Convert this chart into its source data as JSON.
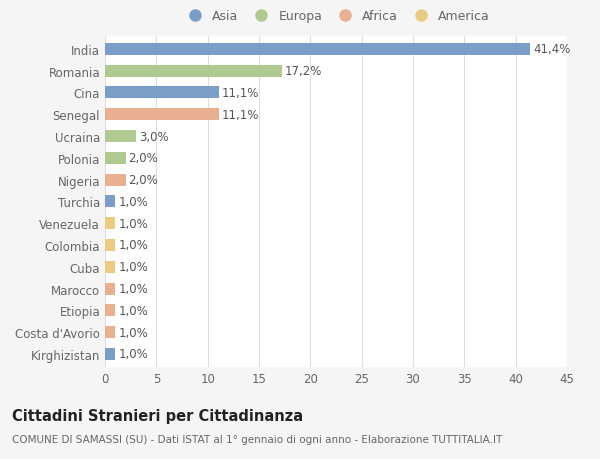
{
  "countries": [
    "India",
    "Romania",
    "Cina",
    "Senegal",
    "Ucraina",
    "Polonia",
    "Nigeria",
    "Turchia",
    "Venezuela",
    "Colombia",
    "Cuba",
    "Marocco",
    "Etiopia",
    "Costa d'Avorio",
    "Kirghizistan"
  ],
  "values": [
    41.4,
    17.2,
    11.1,
    11.1,
    3.0,
    2.0,
    2.0,
    1.0,
    1.0,
    1.0,
    1.0,
    1.0,
    1.0,
    1.0,
    1.0
  ],
  "labels": [
    "41,4%",
    "17,2%",
    "11,1%",
    "11,1%",
    "3,0%",
    "2,0%",
    "2,0%",
    "1,0%",
    "1,0%",
    "1,0%",
    "1,0%",
    "1,0%",
    "1,0%",
    "1,0%",
    "1,0%"
  ],
  "continents": [
    "Asia",
    "Europa",
    "Asia",
    "Africa",
    "Europa",
    "Europa",
    "Africa",
    "Asia",
    "America",
    "America",
    "America",
    "Africa",
    "Africa",
    "Africa",
    "Asia"
  ],
  "colors": {
    "Asia": "#7a9ec8",
    "Europa": "#b0c990",
    "Africa": "#e8b090",
    "America": "#e8cc82"
  },
  "legend_order": [
    "Asia",
    "Europa",
    "Africa",
    "America"
  ],
  "title": "Cittadini Stranieri per Cittadinanza",
  "subtitle": "COMUNE DI SAMASSI (SU) - Dati ISTAT al 1° gennaio di ogni anno - Elaborazione TUTTITALIA.IT",
  "xlim": [
    0,
    45
  ],
  "xticks": [
    0,
    5,
    10,
    15,
    20,
    25,
    30,
    35,
    40,
    45
  ],
  "background_color": "#f5f5f5",
  "plot_bg_color": "#ffffff",
  "grid_color": "#dddddd",
  "text_color": "#666666",
  "label_color": "#555555",
  "title_color": "#222222",
  "bar_height": 0.55,
  "label_fontsize": 8.5,
  "tick_fontsize": 8.5,
  "title_fontsize": 10.5,
  "subtitle_fontsize": 7.5,
  "legend_fontsize": 9
}
